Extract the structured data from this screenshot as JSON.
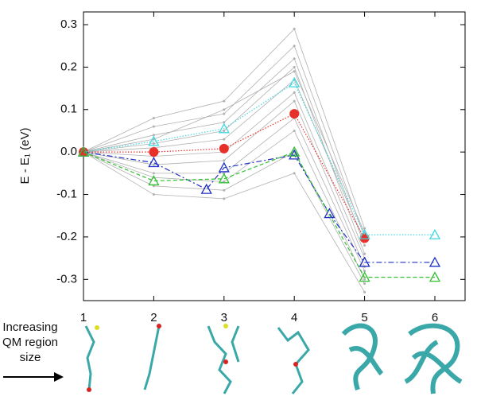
{
  "chart_data": {
    "type": "line",
    "ylabel": "E - E₁ (eV)",
    "annotation": [
      "Increasing",
      "QM region",
      "size"
    ],
    "xlim": [
      1,
      6.43
    ],
    "xticks": [
      1,
      2,
      3,
      4,
      5,
      6
    ],
    "ylim": [
      -0.35,
      0.33
    ],
    "yticks": [
      0.3,
      0.2,
      0.1,
      {
        "value": 0,
        "label": "0.0"
      },
      -0.1,
      -0.2,
      -0.3
    ],
    "series": [
      {
        "color": "#b0b0b0",
        "style": "solid",
        "marker": "dot",
        "x": [
          1,
          2,
          3,
          4,
          5
        ],
        "values": [
          0,
          0.08,
          0.12,
          0.29,
          -0.18
        ]
      },
      {
        "color": "#b0b0b0",
        "style": "solid",
        "marker": "dot",
        "x": [
          1,
          2,
          3,
          4,
          5
        ],
        "values": [
          0,
          0.06,
          0.09,
          0.25,
          -0.2
        ]
      },
      {
        "color": "#b0b0b0",
        "style": "solid",
        "marker": "dot",
        "x": [
          1,
          2,
          3,
          4,
          5
        ],
        "values": [
          0,
          0.04,
          0.07,
          0.22,
          -0.22
        ]
      },
      {
        "color": "#b0b0b0",
        "style": "solid",
        "marker": "dot",
        "x": [
          1,
          2,
          3,
          4,
          5
        ],
        "values": [
          0,
          0.02,
          0.05,
          0.2,
          -0.24
        ]
      },
      {
        "color": "#b0b0b0",
        "style": "solid",
        "marker": "dot",
        "x": [
          1,
          2,
          3,
          4,
          5
        ],
        "values": [
          0,
          0.01,
          0.03,
          0.17,
          -0.21
        ]
      },
      {
        "color": "#b0b0b0",
        "style": "solid",
        "marker": "dot",
        "x": [
          1,
          2,
          3,
          4,
          5
        ],
        "values": [
          0,
          -0.01,
          0.0,
          0.14,
          -0.25
        ]
      },
      {
        "color": "#b0b0b0",
        "style": "solid",
        "marker": "dot",
        "x": [
          1,
          2,
          3,
          4,
          5
        ],
        "values": [
          0,
          -0.03,
          -0.02,
          0.12,
          -0.27
        ]
      },
      {
        "color": "#b0b0b0",
        "style": "solid",
        "marker": "dot",
        "x": [
          1,
          2,
          3,
          4,
          5
        ],
        "values": [
          0,
          -0.05,
          -0.05,
          0.08,
          -0.28
        ]
      },
      {
        "color": "#b0b0b0",
        "style": "solid",
        "marker": "dot",
        "x": [
          1,
          2,
          3,
          4,
          5
        ],
        "values": [
          0,
          -0.06,
          -0.07,
          0.05,
          -0.3
        ]
      },
      {
        "color": "#b0b0b0",
        "style": "solid",
        "marker": "dot",
        "x": [
          1,
          2,
          3,
          4,
          5
        ],
        "values": [
          0,
          -0.08,
          -0.09,
          0.0,
          -0.31
        ]
      },
      {
        "color": "#b0b0b0",
        "style": "solid",
        "marker": "dot",
        "x": [
          1,
          2,
          3,
          4,
          5
        ],
        "values": [
          0,
          -0.1,
          -0.11,
          -0.05,
          -0.33
        ]
      },
      {
        "color": "#b0b0b0",
        "style": "solid",
        "marker": "dot",
        "x": [
          1,
          2,
          3,
          4,
          5
        ],
        "values": [
          0,
          0.03,
          0.1,
          0.19,
          -0.19
        ]
      },
      {
        "color": "#e8302a",
        "style": "dotted",
        "marker": "circle",
        "x": [
          1,
          2,
          3,
          4,
          5
        ],
        "values": [
          0,
          0,
          0.008,
          0.09,
          -0.203
        ]
      },
      {
        "color": "#40d8e0",
        "style": "dotted",
        "marker": "triangle",
        "x": [
          1,
          2,
          3,
          4,
          5,
          6
        ],
        "values": [
          0,
          0.025,
          0.055,
          0.163,
          -0.195,
          -0.195
        ]
      },
      {
        "color": "#2030c8",
        "style": "dashdot",
        "marker": "triangle",
        "x": [
          1,
          2,
          2.75,
          3,
          4,
          4.5,
          5,
          6
        ],
        "values": [
          0,
          -0.025,
          -0.088,
          -0.037,
          -0.007,
          -0.145,
          -0.26,
          -0.26
        ]
      },
      {
        "color": "#30c030",
        "style": "dashed",
        "marker": "triangle",
        "x": [
          1,
          2,
          3,
          4,
          5,
          6
        ],
        "values": [
          0,
          -0.068,
          -0.063,
          0.0,
          -0.295,
          -0.295
        ]
      }
    ]
  }
}
